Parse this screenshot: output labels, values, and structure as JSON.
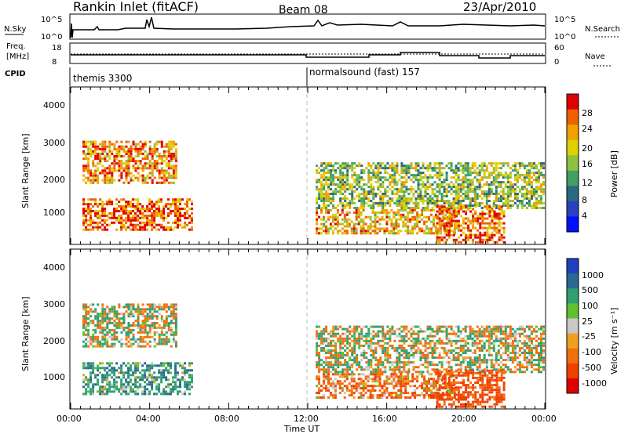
{
  "header": {
    "title": "Rankin Inlet (fitACF)",
    "beam": "Beam 08",
    "date": "23/Apr/2010"
  },
  "sky_panel": {
    "left_label": "N.Sky",
    "left_ticks": [
      "10^5",
      "10^0"
    ],
    "right_ticks": [
      "10^5",
      "10^0"
    ],
    "right_label": "N.Search"
  },
  "freq_panel": {
    "left_label_line1": "Freq.",
    "left_label_line2": "[MHz]",
    "left_ticks": [
      "18",
      "8"
    ],
    "right_ticks": [
      "60",
      "0"
    ],
    "right_label": "Nave"
  },
  "cpid_panel": {
    "label": "CPID",
    "program1": "themis 3300",
    "program2": "normalsound (fast) 157"
  },
  "power_panel": {
    "ylabel": "Slant Range [km]",
    "yticks": [
      "4000",
      "3000",
      "2000",
      "1000"
    ],
    "cbar_label": "Power [dB]",
    "cbar_ticks": [
      "28",
      "24",
      "20",
      "16",
      "12",
      "8",
      "4"
    ],
    "cbar_colors": [
      "#e00000",
      "#f06000",
      "#f0a000",
      "#e0d000",
      "#90c040",
      "#40a060",
      "#2a6a80",
      "#2a40c0",
      "#0010ff"
    ]
  },
  "velocity_panel": {
    "ylabel": "Slant Range [km]",
    "yticks": [
      "4000",
      "3000",
      "2000",
      "1000"
    ],
    "cbar_label": "Velocity [m s⁻¹]",
    "cbar_ticks": [
      "1000",
      "500",
      "100",
      "25",
      "-25",
      "-100",
      "-500",
      "-1000"
    ],
    "cbar_colors": [
      "#2040c0",
      "#2a6a90",
      "#30a070",
      "#60c030",
      "#c8c8c8",
      "#f0a020",
      "#f07010",
      "#f04000",
      "#e00000"
    ]
  },
  "xaxis": {
    "ticks": [
      "00:00",
      "04:00",
      "08:00",
      "12:00",
      "16:00",
      "20:00",
      "00:00"
    ],
    "label": "Time UT"
  },
  "chart_data": {
    "type": "heatmap",
    "title": "Rankin Inlet (fitACF)",
    "xlabel": "Time UT",
    "ylabel": "Slant Range [km]",
    "xlim": [
      "00:00",
      "24:00"
    ],
    "ylim": [
      180,
      4500
    ],
    "program_switch_time": "12:00",
    "power_colorbar": {
      "label": "Power [dB]",
      "ticks": [
        28,
        24,
        20,
        16,
        12,
        8,
        4
      ]
    },
    "velocity_colorbar": {
      "label": "Velocity [m s⁻¹]",
      "ticks": [
        1000,
        500,
        100,
        25,
        -25,
        -100,
        -500,
        -1000
      ]
    },
    "backscatter_regions": [
      {
        "t_start": 0.6,
        "t_end": 5.4,
        "r_low": 1900,
        "r_high": 3100,
        "power_db": 22,
        "velocity": 0
      },
      {
        "t_start": 0.6,
        "t_end": 6.2,
        "r_low": 600,
        "r_high": 1500,
        "power_db": 24,
        "velocity": 200
      },
      {
        "t_start": 12.4,
        "t_end": 24.0,
        "r_low": 1200,
        "r_high": 2500,
        "power_db": 14,
        "velocity": 0
      },
      {
        "t_start": 12.4,
        "t_end": 19.5,
        "r_low": 500,
        "r_high": 1200,
        "power_db": 20,
        "velocity": -200
      },
      {
        "t_start": 18.5,
        "t_end": 22.0,
        "r_low": 250,
        "r_high": 1300,
        "power_db": 24,
        "velocity": -400
      }
    ]
  }
}
